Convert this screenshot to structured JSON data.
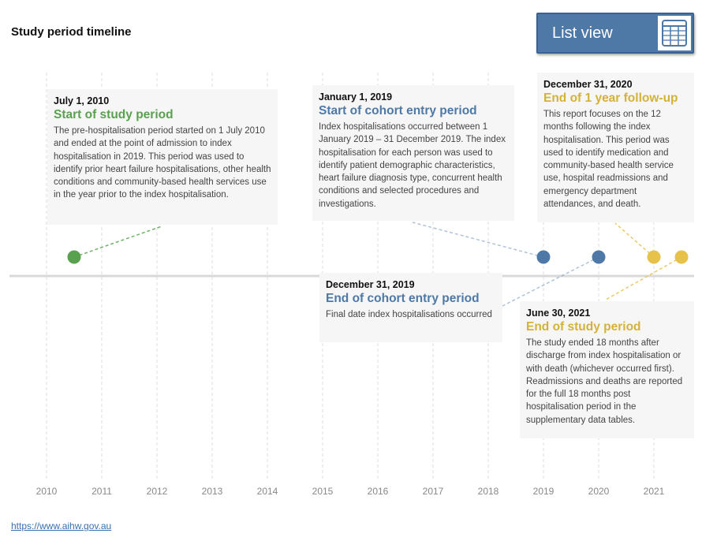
{
  "title": "Study period timeline",
  "list_view": {
    "label": "List view",
    "icon": "table-list-icon"
  },
  "colors": {
    "green": "#59a14f",
    "blue": "#4e79a7",
    "yellow": "#e6c24a",
    "axis": "#d9d9d9",
    "grid": "#dddddd",
    "card_bg": "#f6f6f6"
  },
  "events": [
    {
      "date": "July 1, 2010",
      "heading": "Start of study period",
      "color": "#59a14f",
      "body": "The pre-hospitalisation period started on 1 July 2010 and ended at the point of admission to index hospitalisation in 2019. This period was used to identify prior heart failure hospitalisations, other health conditions and community-based health services use in the year prior to the index hospitalisation."
    },
    {
      "date": "January 1, 2019",
      "heading": "Start of cohort entry period",
      "color": "#4e79a7",
      "body": "Index hospitalisations occurred between 1 January 2019 – 31 December 2019. The index hospitalisation for each person was used to identify patient demographic characteristics, heart failure diagnosis type, concurrent health conditions and selected procedures and investigations."
    },
    {
      "date": "December 31, 2019",
      "heading": "End of cohort entry period",
      "color": "#4e79a7",
      "body": "Final date index hospitalisations occurred"
    },
    {
      "date": "December 31, 2020",
      "heading": "End of 1 year follow-up",
      "color": "#e6c24a",
      "body": "This report focuses on the 12 months following the index hospitalisation. This period was used to identify medication and community-based health service use, hospital readmissions and emergency department attendances, and death."
    },
    {
      "date": "June 30, 2021",
      "heading": "End of study period",
      "color": "#e6c24a",
      "body": "The study ended 18 months after discharge from index hospitalisation or with death (whichever occurred first). Readmissions and deaths are reported for the full 18 months post hospitalisation period in the supplementary data tables."
    }
  ],
  "chart_data": {
    "type": "scatter",
    "x_ticks": [
      "2010",
      "2011",
      "2012",
      "2013",
      "2014",
      "2015",
      "2016",
      "2017",
      "2018",
      "2019",
      "2020",
      "2021"
    ],
    "xlim": [
      2010,
      2021.75
    ],
    "grid": "vertical dashed at each year",
    "points": [
      {
        "date": "2010-07-01",
        "x": 2010.5,
        "label": "Start of study period",
        "color": "#59a14f"
      },
      {
        "date": "2019-01-01",
        "x": 2019.0,
        "label": "Start of cohort entry period",
        "color": "#4e79a7"
      },
      {
        "date": "2019-12-31",
        "x": 2020.0,
        "label": "End of cohort entry period",
        "color": "#4e79a7"
      },
      {
        "date": "2020-12-31",
        "x": 2021.0,
        "label": "End of 1 year follow-up",
        "color": "#e6c24a"
      },
      {
        "date": "2021-06-30",
        "x": 2021.5,
        "label": "End of study period",
        "color": "#e6c24a"
      }
    ]
  },
  "footer_link": "https://www.aihw.gov.au"
}
